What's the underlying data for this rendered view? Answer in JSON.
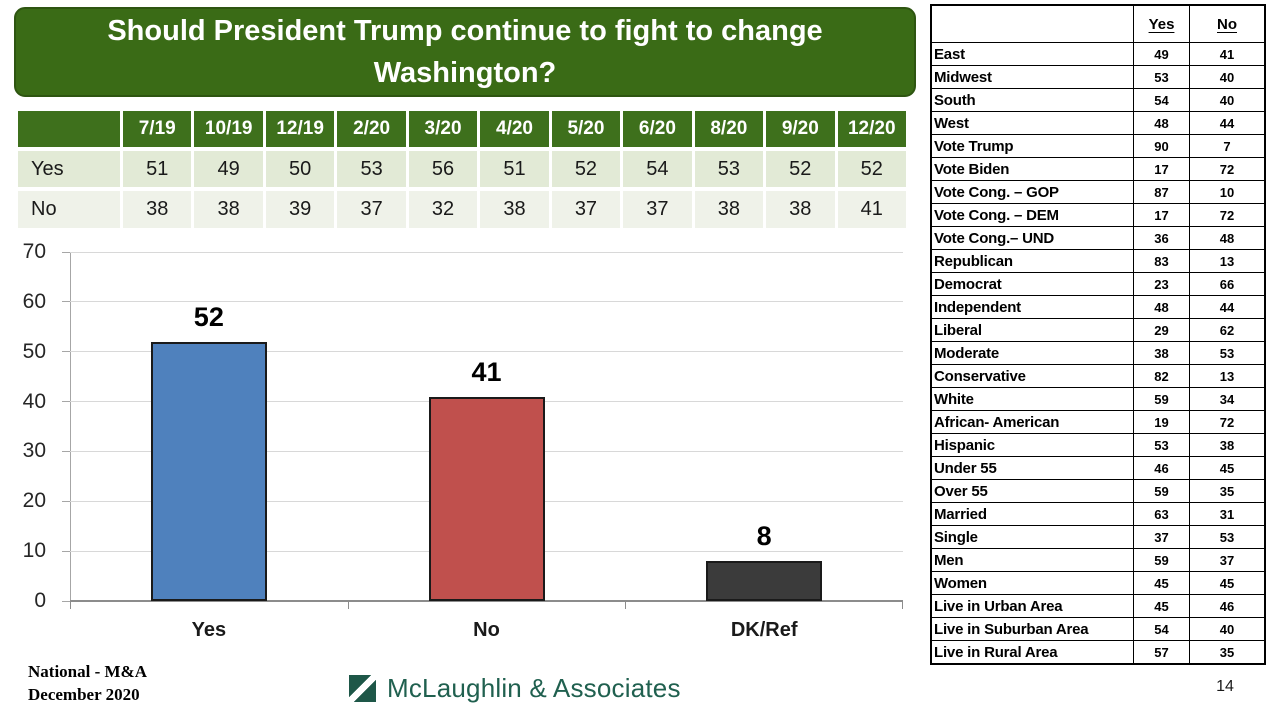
{
  "title": "Should President Trump continue to fight to change Washington?",
  "trend_table": {
    "columns": [
      "7/19",
      "10/19",
      "12/19",
      "2/20",
      "3/20",
      "4/20",
      "5/20",
      "6/20",
      "8/20",
      "9/20",
      "12/20"
    ],
    "rows": [
      {
        "label": "Yes",
        "values": [
          51,
          49,
          50,
          53,
          56,
          51,
          52,
          54,
          53,
          52,
          52
        ]
      },
      {
        "label": "No",
        "values": [
          38,
          38,
          39,
          37,
          32,
          38,
          37,
          37,
          38,
          38,
          41
        ]
      }
    ]
  },
  "chart_data": {
    "type": "bar",
    "categories": [
      "Yes",
      "No",
      "DK/Ref"
    ],
    "values": [
      52,
      41,
      8
    ],
    "bar_colors": [
      "#4F81BD",
      "#C0504D",
      "#3B3B3B"
    ],
    "ylim": [
      0,
      70
    ],
    "ytick_step": 10,
    "grid": true,
    "title": "",
    "xlabel": "",
    "ylabel": ""
  },
  "crosstab": {
    "headers": {
      "yes": "Yes",
      "no": "No"
    },
    "rows": [
      {
        "label": "East",
        "yes": 49,
        "no": 41
      },
      {
        "label": "Midwest",
        "yes": 53,
        "no": 40
      },
      {
        "label": "South",
        "yes": 54,
        "no": 40
      },
      {
        "label": "West",
        "yes": 48,
        "no": 44
      },
      {
        "label": "Vote Trump",
        "yes": 90,
        "no": 7
      },
      {
        "label": "Vote Biden",
        "yes": 17,
        "no": 72
      },
      {
        "label": "Vote Cong. – GOP",
        "yes": 87,
        "no": 10
      },
      {
        "label": "Vote Cong. – DEM",
        "yes": 17,
        "no": 72
      },
      {
        "label": "Vote Cong.– UND",
        "yes": 36,
        "no": 48
      },
      {
        "label": "Republican",
        "yes": 83,
        "no": 13
      },
      {
        "label": "Democrat",
        "yes": 23,
        "no": 66
      },
      {
        "label": "Independent",
        "yes": 48,
        "no": 44
      },
      {
        "label": "Liberal",
        "yes": 29,
        "no": 62
      },
      {
        "label": "Moderate",
        "yes": 38,
        "no": 53
      },
      {
        "label": "Conservative",
        "yes": 82,
        "no": 13
      },
      {
        "label": "White",
        "yes": 59,
        "no": 34
      },
      {
        "label": "African- American",
        "yes": 19,
        "no": 72
      },
      {
        "label": "Hispanic",
        "yes": 53,
        "no": 38
      },
      {
        "label": "Under 55",
        "yes": 46,
        "no": 45
      },
      {
        "label": "Over 55",
        "yes": 59,
        "no": 35
      },
      {
        "label": "Married",
        "yes": 63,
        "no": 31
      },
      {
        "label": "Single",
        "yes": 37,
        "no": 53
      },
      {
        "label": "Men",
        "yes": 59,
        "no": 37
      },
      {
        "label": "Women",
        "yes": 45,
        "no": 45
      },
      {
        "label": "Live in Urban Area",
        "yes": 45,
        "no": 46
      },
      {
        "label": "Live in Suburban Area",
        "yes": 54,
        "no": 40
      },
      {
        "label": "Live in Rural Area",
        "yes": 57,
        "no": 35
      }
    ]
  },
  "footer": {
    "source_line1": "National - M&A",
    "source_line2": "December 2020",
    "logo_text": "McLaughlin & Associates",
    "page_number": "14"
  },
  "colors": {
    "title_green": "#3A6B16",
    "table_header_green": "#3E701C",
    "row_light_green": "#E2EAD6",
    "row_lighter_green": "#EFF2E9",
    "logo_green": "#1E5748",
    "bar_yes": "#4F81BD",
    "bar_no": "#C0504D",
    "bar_dkref": "#3B3B3B"
  }
}
